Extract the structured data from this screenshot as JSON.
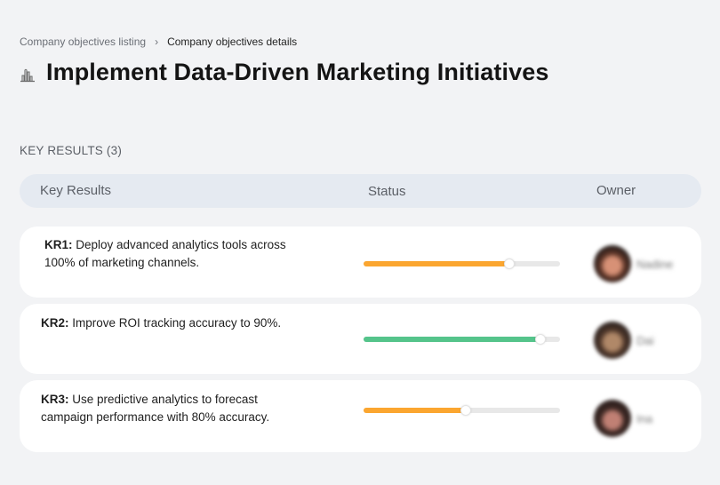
{
  "breadcrumb": {
    "items": [
      {
        "label": "Company objectives listing"
      },
      {
        "label": "Company objectives details"
      }
    ],
    "separator": "›"
  },
  "header": {
    "icon": "bar-chart-building-icon",
    "title": "Implement Data-Driven Marketing Initiatives"
  },
  "key_results_section": {
    "label": "KEY RESULTS (3)",
    "columns": {
      "key_results": "Key Results",
      "status": "Status",
      "owner": "Owner"
    },
    "rows": [
      {
        "id": "KR1:",
        "text": " Deploy advanced analytics tools across 100% of marketing channels.",
        "progress_percent": 74,
        "progress_color": "#fba630",
        "owner_name": "Nadine",
        "avatar_colors": [
          "#5a3326",
          "#d79176",
          "#1e1a1a"
        ]
      },
      {
        "id": "KR2:",
        "text": " Improve ROI tracking accuracy to 90%.",
        "progress_percent": 90,
        "progress_color": "#55c48b",
        "owner_name": "Dai",
        "avatar_colors": [
          "#4b3428",
          "#b08868",
          "#2a2220"
        ]
      },
      {
        "id": "KR3:",
        "text": " Use predictive analytics to forecast campaign performance with 80% accuracy.",
        "progress_percent": 52,
        "progress_color": "#fba630",
        "owner_name": "Ina",
        "avatar_colors": [
          "#3a2622",
          "#c08074",
          "#2b1f1d"
        ]
      }
    ]
  }
}
